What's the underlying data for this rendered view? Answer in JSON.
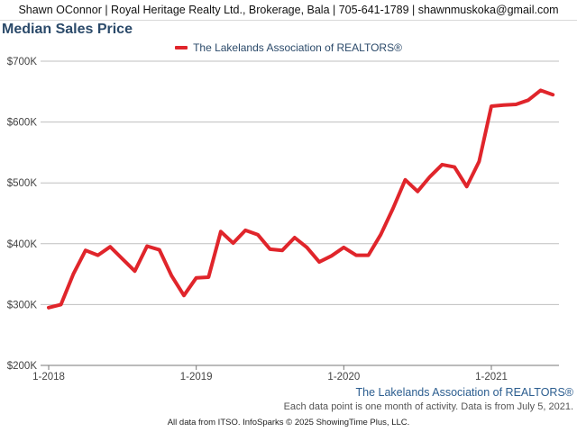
{
  "header": {
    "agent_line": "Shawn OConnor | Royal Heritage Realty Ltd., Brokerage, Bala | 705-641-1789 | shawnmuskoka@gmail.com"
  },
  "chart_data": {
    "type": "line",
    "title": "Median Sales Price",
    "xlabel": "",
    "ylabel": "",
    "x_ticks": [
      "1-2018",
      "1-2019",
      "1-2020",
      "1-2021"
    ],
    "y_ticks": [
      "$200K",
      "$300K",
      "$400K",
      "$500K",
      "$600K",
      "$700K"
    ],
    "ylim": [
      200000,
      700000
    ],
    "xlim": [
      "2018-01",
      "2021-06"
    ],
    "grid": true,
    "legend_placement": "top-center",
    "series": [
      {
        "name": "The Lakelands Association of REALTORS®",
        "color": "#e0252b",
        "x": [
          "2018-01",
          "2018-02",
          "2018-03",
          "2018-04",
          "2018-05",
          "2018-06",
          "2018-07",
          "2018-08",
          "2018-09",
          "2018-10",
          "2018-11",
          "2018-12",
          "2019-01",
          "2019-02",
          "2019-03",
          "2019-04",
          "2019-05",
          "2019-06",
          "2019-07",
          "2019-08",
          "2019-09",
          "2019-10",
          "2019-11",
          "2019-12",
          "2020-01",
          "2020-02",
          "2020-03",
          "2020-04",
          "2020-05",
          "2020-06",
          "2020-07",
          "2020-08",
          "2020-09",
          "2020-10",
          "2020-11",
          "2020-12",
          "2021-01",
          "2021-02",
          "2021-03",
          "2021-04",
          "2021-05",
          "2021-06"
        ],
        "values": [
          295000,
          300000,
          350000,
          389000,
          381000,
          395000,
          375000,
          355000,
          396000,
          390000,
          347000,
          315000,
          344000,
          345000,
          420000,
          401000,
          422000,
          415000,
          391000,
          389000,
          410000,
          394000,
          370000,
          380000,
          394000,
          381000,
          381000,
          415000,
          458000,
          505000,
          486000,
          510000,
          530000,
          526000,
          494000,
          535000,
          626000,
          628000,
          629000,
          636000,
          652000,
          645000
        ]
      }
    ]
  },
  "footer": {
    "brand": "The Lakelands Association of REALTORS®",
    "note": "Each data point is one month of activity. Data is from July 5, 2021.",
    "credit": "All data from ITSO. InfoSparks © 2025 ShowingTime Plus, LLC."
  }
}
